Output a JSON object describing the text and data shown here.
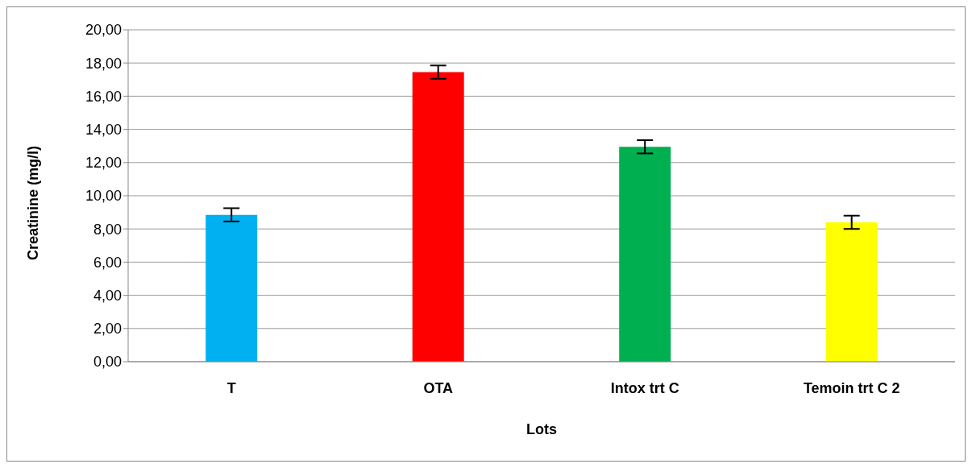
{
  "chart_data": {
    "type": "bar",
    "xlabel": "Lots",
    "ylabel": "Creatinine (mg/l)",
    "categories": [
      "T",
      "OTA",
      "Intox trt C",
      "Temoin trt C 2"
    ],
    "values": [
      8.85,
      17.45,
      12.95,
      8.4
    ],
    "colors": [
      "#00b0f0",
      "#ff0000",
      "#00b050",
      "#ffff00"
    ],
    "errors": [
      0.4,
      0.4,
      0.4,
      0.4
    ],
    "ylim": [
      0,
      20
    ],
    "yticks": [
      {
        "value": 0,
        "label": "0,00"
      },
      {
        "value": 2,
        "label": "2,00"
      },
      {
        "value": 4,
        "label": "4,00"
      },
      {
        "value": 6,
        "label": "6,00"
      },
      {
        "value": 8,
        "label": "8,00"
      },
      {
        "value": 10,
        "label": "10,00"
      },
      {
        "value": 12,
        "label": "12,00"
      },
      {
        "value": 14,
        "label": "14,00"
      },
      {
        "value": 16,
        "label": "16,00"
      },
      {
        "value": 18,
        "label": "18,00"
      },
      {
        "value": 20,
        "label": "20,00"
      }
    ],
    "grid": "y"
  }
}
